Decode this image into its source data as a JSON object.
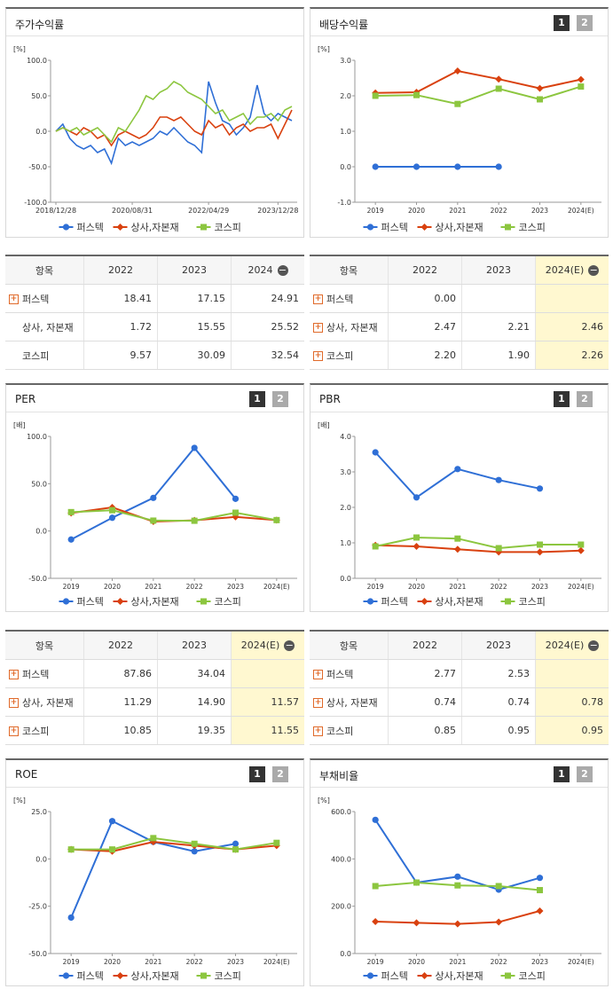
{
  "chart_data": [
    {
      "type": "line",
      "title": "주가수익률",
      "unit": "[%]",
      "markers": false,
      "categories": [
        "2018/12/28",
        null,
        null,
        null,
        null,
        null,
        null,
        null,
        null,
        null,
        null,
        "2020/08/31",
        null,
        null,
        null,
        null,
        null,
        null,
        null,
        null,
        null,
        null,
        "2022/04/29",
        null,
        null,
        null,
        null,
        null,
        null,
        null,
        null,
        null,
        "2023/12/28",
        null,
        null
      ],
      "ylim": [
        -100,
        100
      ],
      "yticks": [
        {
          "value": -100,
          "label": "-100.0"
        },
        {
          "value": -50,
          "label": "-50.0"
        },
        {
          "value": 0,
          "label": "0.0"
        },
        {
          "value": 50,
          "label": "50.0"
        },
        {
          "value": 100,
          "label": "100.0"
        }
      ],
      "series": [
        {
          "name": "퍼스텍",
          "color": "#2f6fd6",
          "marker": "circle",
          "values": [
            0,
            10,
            -10,
            -20,
            -25,
            -20,
            -30,
            -25,
            -45,
            -10,
            -20,
            -15,
            -20,
            -15,
            -10,
            0,
            -5,
            5,
            -5,
            -15,
            -20,
            -30,
            70,
            40,
            15,
            10,
            -5,
            5,
            20,
            65,
            25,
            15,
            25,
            20,
            15
          ]
        },
        {
          "name": "상사,자본재",
          "color": "#d9410f",
          "marker": "diamond",
          "values": [
            0,
            5,
            0,
            -5,
            5,
            0,
            -10,
            -5,
            -20,
            -5,
            0,
            -5,
            -10,
            -5,
            5,
            20,
            20,
            15,
            20,
            10,
            0,
            -5,
            15,
            5,
            10,
            -5,
            5,
            10,
            0,
            5,
            5,
            10,
            -10,
            10,
            30
          ]
        },
        {
          "name": "코스피",
          "color": "#8cc63f",
          "marker": "square",
          "values": [
            0,
            5,
            0,
            5,
            -5,
            0,
            5,
            -5,
            -15,
            5,
            0,
            15,
            30,
            50,
            45,
            55,
            60,
            70,
            65,
            55,
            50,
            45,
            35,
            25,
            30,
            15,
            20,
            25,
            10,
            20,
            20,
            25,
            15,
            30,
            35
          ]
        }
      ]
    },
    {
      "type": "line",
      "title": "배당수익률",
      "unit": "[%]",
      "markers": true,
      "pages": [
        "1",
        "2"
      ],
      "categories": [
        "2019",
        "2020",
        "2021",
        "2022",
        "2023",
        "2024(E)"
      ],
      "ylim": [
        -1,
        3
      ],
      "yticks": [
        {
          "value": -1,
          "label": "-1.0"
        },
        {
          "value": 0,
          "label": "0.0"
        },
        {
          "value": 1,
          "label": "1.0"
        },
        {
          "value": 2,
          "label": "2.0"
        },
        {
          "value": 3,
          "label": "3.0"
        }
      ],
      "series": [
        {
          "name": "퍼스텍",
          "color": "#2f6fd6",
          "marker": "circle",
          "values": [
            0,
            0,
            0,
            0,
            null,
            null
          ]
        },
        {
          "name": "상사,자본재",
          "color": "#d9410f",
          "marker": "diamond",
          "values": [
            2.08,
            2.1,
            2.7,
            2.47,
            2.21,
            2.46
          ]
        },
        {
          "name": "코스피",
          "color": "#8cc63f",
          "marker": "square",
          "values": [
            2.0,
            2.02,
            1.77,
            2.2,
            1.9,
            2.26
          ]
        }
      ]
    },
    {
      "type": "line",
      "title": "PER",
      "unit": "[배]",
      "markers": true,
      "pages": [
        "1",
        "2"
      ],
      "categories": [
        "2019",
        "2020",
        "2021",
        "2022",
        "2023",
        "2024(E)"
      ],
      "ylim": [
        -50,
        100
      ],
      "yticks": [
        {
          "value": -50,
          "label": "-50.0"
        },
        {
          "value": 0,
          "label": "0.0"
        },
        {
          "value": 50,
          "label": "50.0"
        },
        {
          "value": 100,
          "label": "100.0"
        }
      ],
      "series": [
        {
          "name": "퍼스텍",
          "color": "#2f6fd6",
          "marker": "circle",
          "values": [
            -9,
            14,
            35,
            87.86,
            34.04,
            null
          ]
        },
        {
          "name": "상사,자본재",
          "color": "#d9410f",
          "marker": "diamond",
          "values": [
            19,
            25,
            10,
            11.29,
            14.9,
            11.57
          ]
        },
        {
          "name": "코스피",
          "color": "#8cc63f",
          "marker": "square",
          "values": [
            20,
            22,
            11,
            10.85,
            19.35,
            11.55
          ]
        }
      ]
    },
    {
      "type": "line",
      "title": "PBR",
      "unit": "[배]",
      "markers": true,
      "pages": [
        "1",
        "2"
      ],
      "categories": [
        "2019",
        "2020",
        "2021",
        "2022",
        "2023",
        "2024(E)"
      ],
      "ylim": [
        0,
        4
      ],
      "yticks": [
        {
          "value": 0,
          "label": "0.0"
        },
        {
          "value": 1,
          "label": "1.0"
        },
        {
          "value": 2,
          "label": "2.0"
        },
        {
          "value": 3,
          "label": "3.0"
        },
        {
          "value": 4,
          "label": "4.0"
        }
      ],
      "series": [
        {
          "name": "퍼스텍",
          "color": "#2f6fd6",
          "marker": "circle",
          "values": [
            3.55,
            2.28,
            3.08,
            2.77,
            2.53,
            null
          ]
        },
        {
          "name": "상사,자본재",
          "color": "#d9410f",
          "marker": "diamond",
          "values": [
            0.93,
            0.9,
            0.82,
            0.74,
            0.74,
            0.78
          ]
        },
        {
          "name": "코스피",
          "color": "#8cc63f",
          "marker": "square",
          "values": [
            0.9,
            1.15,
            1.12,
            0.85,
            0.95,
            0.95
          ]
        }
      ]
    },
    {
      "type": "line",
      "title": "ROE",
      "unit": "[%]",
      "markers": true,
      "pages": [
        "1",
        "2"
      ],
      "categories": [
        "2019",
        "2020",
        "2021",
        "2022",
        "2023",
        "2024(E)"
      ],
      "ylim": [
        -50,
        25
      ],
      "yticks": [
        {
          "value": -50,
          "label": "-50.0"
        },
        {
          "value": -25,
          "label": "-25.0"
        },
        {
          "value": 0,
          "label": "0.0"
        },
        {
          "value": 25,
          "label": "25.0"
        }
      ],
      "series": [
        {
          "name": "퍼스텍",
          "color": "#2f6fd6",
          "marker": "circle",
          "values": [
            -31,
            20,
            9,
            4,
            8,
            null
          ]
        },
        {
          "name": "상사,자본재",
          "color": "#d9410f",
          "marker": "diamond",
          "values": [
            5,
            4,
            9,
            7,
            5,
            7
          ]
        },
        {
          "name": "코스피",
          "color": "#8cc63f",
          "marker": "square",
          "values": [
            5,
            5,
            11,
            8,
            5,
            8.5
          ]
        }
      ]
    },
    {
      "type": "line",
      "title": "부채비율",
      "unit": "[%]",
      "markers": true,
      "pages": [
        "1",
        "2"
      ],
      "categories": [
        "2019",
        "2020",
        "2021",
        "2022",
        "2023",
        "2024(E)"
      ],
      "ylim": [
        0,
        600
      ],
      "yticks": [
        {
          "value": 0,
          "label": "0.0"
        },
        {
          "value": 200,
          "label": "200.0"
        },
        {
          "value": 400,
          "label": "400.0"
        },
        {
          "value": 600,
          "label": "600.0"
        }
      ],
      "series": [
        {
          "name": "퍼스텍",
          "color": "#2f6fd6",
          "marker": "circle",
          "values": [
            565,
            300,
            325,
            270,
            320,
            null
          ]
        },
        {
          "name": "상사,자본재",
          "color": "#d9410f",
          "marker": "diamond",
          "values": [
            135,
            130,
            125,
            133,
            180,
            null
          ]
        },
        {
          "name": "코스피",
          "color": "#8cc63f",
          "marker": "square",
          "values": [
            285,
            300,
            288,
            285,
            268,
            null
          ]
        }
      ]
    }
  ],
  "tables": [
    {
      "header": [
        "항목",
        "2022",
        "2023",
        "2024"
      ],
      "highlight_last": false,
      "rows": [
        {
          "label": "퍼스텍",
          "expandable": true,
          "cells": [
            "18.41",
            "17.15",
            "24.91"
          ]
        },
        {
          "label": "상사, 자본재",
          "expandable": false,
          "cells": [
            "1.72",
            "15.55",
            "25.52"
          ]
        },
        {
          "label": "코스피",
          "expandable": false,
          "cells": [
            "9.57",
            "30.09",
            "32.54"
          ]
        }
      ]
    },
    {
      "header": [
        "항목",
        "2022",
        "2023",
        "2024(E)"
      ],
      "highlight_last": true,
      "rows": [
        {
          "label": "퍼스텍",
          "expandable": true,
          "cells": [
            "0.00",
            null,
            null
          ]
        },
        {
          "label": "상사, 자본재",
          "expandable": true,
          "cells": [
            "2.47",
            "2.21",
            "2.46"
          ]
        },
        {
          "label": "코스피",
          "expandable": true,
          "cells": [
            "2.20",
            "1.90",
            "2.26"
          ]
        }
      ]
    },
    {
      "header": [
        "항목",
        "2022",
        "2023",
        "2024(E)"
      ],
      "highlight_last": true,
      "rows": [
        {
          "label": "퍼스텍",
          "expandable": true,
          "cells": [
            "87.86",
            "34.04",
            null
          ]
        },
        {
          "label": "상사, 자본재",
          "expandable": true,
          "cells": [
            "11.29",
            "14.90",
            "11.57"
          ]
        },
        {
          "label": "코스피",
          "expandable": true,
          "cells": [
            "10.85",
            "19.35",
            "11.55"
          ]
        }
      ]
    },
    {
      "header": [
        "항목",
        "2022",
        "2023",
        "2024(E)"
      ],
      "highlight_last": true,
      "rows": [
        {
          "label": "퍼스텍",
          "expandable": true,
          "cells": [
            "2.77",
            "2.53",
            null
          ]
        },
        {
          "label": "상사, 자본재",
          "expandable": true,
          "cells": [
            "0.74",
            "0.74",
            "0.78"
          ]
        },
        {
          "label": "코스피",
          "expandable": true,
          "cells": [
            "0.85",
            "0.95",
            "0.95"
          ]
        }
      ]
    }
  ]
}
